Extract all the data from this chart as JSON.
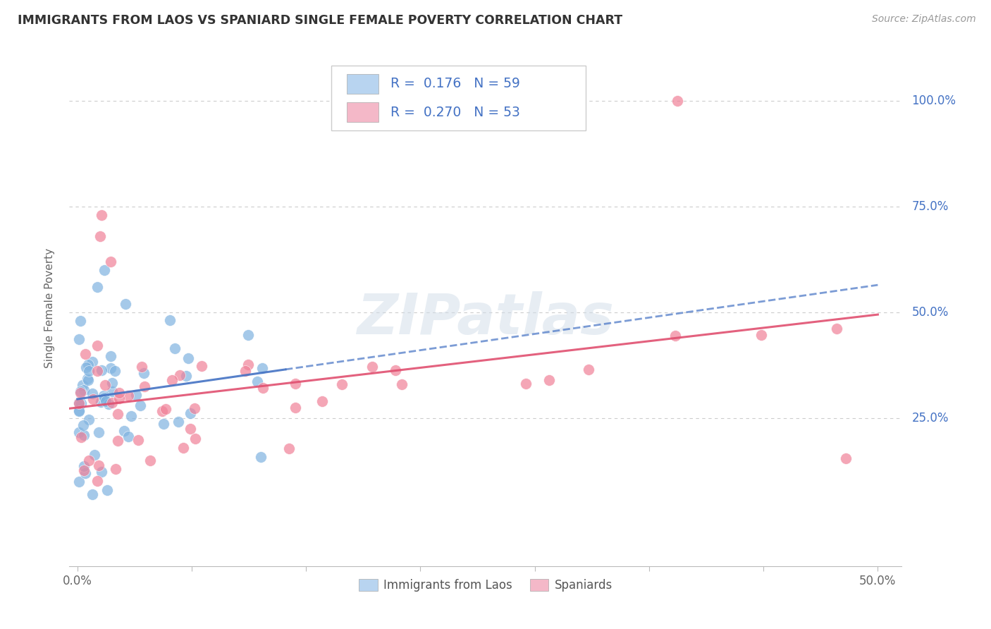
{
  "title": "IMMIGRANTS FROM LAOS VS SPANIARD SINGLE FEMALE POVERTY CORRELATION CHART",
  "source": "Source: ZipAtlas.com",
  "ylabel": "Single Female Poverty",
  "ytick_labels": [
    "25.0%",
    "50.0%",
    "75.0%",
    "100.0%"
  ],
  "ytick_vals": [
    0.25,
    0.5,
    0.75,
    1.0
  ],
  "xlim": [
    -0.005,
    0.515
  ],
  "ylim": [
    -0.1,
    1.12
  ],
  "legend_color1": "#b8d4f0",
  "legend_color2": "#f4b8c8",
  "scatter_color1": "#7fb3e0",
  "scatter_color2": "#f08098",
  "line_color1": "#4472c4",
  "line_color2": "#e05070",
  "watermark_color": "#d0dce8",
  "background_color": "#ffffff",
  "grid_color": "#cccccc",
  "label_color_blue": "#4472c4",
  "text_dark": "#333333",
  "legend_label1": "Immigrants from Laos",
  "legend_label2": "Spaniards",
  "blue_r_val": "0.176",
  "blue_n_val": "59",
  "pink_r_val": "0.270",
  "pink_n_val": "53",
  "laos_line_x0": 0.0,
  "laos_line_y0": 0.295,
  "laos_line_x1": 0.5,
  "laos_line_y1": 0.565,
  "spain_line_x0": 0.0,
  "spain_line_y0": 0.275,
  "spain_line_x1": 0.5,
  "spain_line_y1": 0.495
}
